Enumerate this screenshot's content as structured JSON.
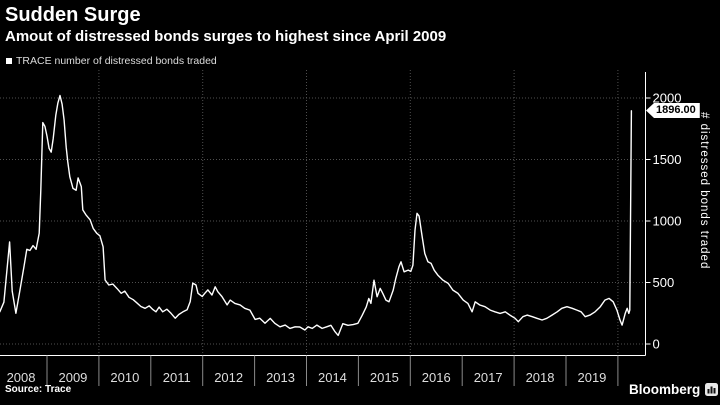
{
  "header": {
    "title": "Sudden Surge",
    "subtitle": "Amout of distressed bonds surges to highest since April 2009"
  },
  "legend": {
    "label": "TRACE number of distressed bonds traded"
  },
  "chart_data": {
    "type": "line",
    "title": "Sudden Surge",
    "subtitle": "Amout of distressed bonds surges to highest since April 2009",
    "xlabel": "",
    "ylabel": "# distressed bonds traded",
    "ylim": [
      0,
      2100
    ],
    "xlim": [
      2008.0,
      2020.5
    ],
    "y_ticks": [
      0,
      500,
      1000,
      1500,
      2000
    ],
    "y_tick_labels": [
      "0",
      "500",
      "1000",
      "1500",
      "2000"
    ],
    "x_tick_labels": [
      "2008",
      "2009",
      "2010",
      "2011",
      "2012",
      "2013",
      "2014",
      "2015",
      "2016",
      "2017",
      "2018",
      "2019"
    ],
    "x_gridline_years": [
      2010,
      2012,
      2014,
      2016,
      2018,
      2020
    ],
    "grid": "dotted",
    "legend_position": "top-left",
    "last_value_label": "1896.00",
    "line_color": "#ffffff",
    "background": "#000000",
    "series": [
      {
        "name": "TRACE number of distressed bonds traded",
        "x": [
          2008.09,
          2008.17,
          2008.25,
          2008.28,
          2008.33,
          2008.4,
          2008.48,
          2008.56,
          2008.61,
          2008.67,
          2008.73,
          2008.79,
          2008.85,
          2008.88,
          2008.92,
          2008.96,
          2009.0,
          2009.04,
          2009.08,
          2009.12,
          2009.17,
          2009.21,
          2009.25,
          2009.29,
          2009.33,
          2009.37,
          2009.4,
          2009.44,
          2009.5,
          2009.56,
          2009.6,
          2009.66,
          2009.69,
          2009.75,
          2009.83,
          2009.89,
          2009.96,
          2010.02,
          2010.08,
          2010.12,
          2010.19,
          2010.27,
          2010.35,
          2010.43,
          2010.5,
          2010.58,
          2010.66,
          2010.73,
          2010.81,
          2010.89,
          2010.97,
          2011.04,
          2011.1,
          2011.16,
          2011.23,
          2011.31,
          2011.39,
          2011.47,
          2011.54,
          2011.62,
          2011.7,
          2011.76,
          2011.81,
          2011.87,
          2011.91,
          2011.99,
          2012.04,
          2012.1,
          2012.18,
          2012.24,
          2012.29,
          2012.37,
          2012.47,
          2012.53,
          2012.62,
          2012.72,
          2012.81,
          2012.91,
          2013.01,
          2013.1,
          2013.2,
          2013.3,
          2013.39,
          2013.49,
          2013.59,
          2013.68,
          2013.78,
          2013.87,
          2013.97,
          2014.03,
          2014.11,
          2014.2,
          2014.3,
          2014.39,
          2014.47,
          2014.55,
          2014.61,
          2014.7,
          2014.8,
          2014.9,
          2014.99,
          2015.07,
          2015.15,
          2015.2,
          2015.24,
          2015.3,
          2015.36,
          2015.42,
          2015.47,
          2015.53,
          2015.59,
          2015.67,
          2015.72,
          2015.78,
          2015.82,
          2015.88,
          2015.96,
          2016.01,
          2016.05,
          2016.09,
          2016.13,
          2016.17,
          2016.23,
          2016.28,
          2016.34,
          2016.4,
          2016.46,
          2016.53,
          2016.63,
          2016.73,
          2016.82,
          2016.92,
          2017.02,
          2017.11,
          2017.19,
          2017.25,
          2017.34,
          2017.44,
          2017.54,
          2017.63,
          2017.73,
          2017.83,
          2017.92,
          2018.02,
          2018.08,
          2018.17,
          2018.25,
          2018.35,
          2018.44,
          2018.54,
          2018.63,
          2018.73,
          2018.83,
          2018.92,
          2019.02,
          2019.12,
          2019.21,
          2019.29,
          2019.37,
          2019.46,
          2019.56,
          2019.66,
          2019.75,
          2019.83,
          2019.91,
          2019.98,
          2020.04,
          2020.08,
          2020.14,
          2020.18,
          2020.21,
          2020.23,
          2020.26
        ],
        "values": [
          262,
          340,
          700,
          830,
          430,
          250,
          440,
          640,
          770,
          760,
          800,
          770,
          900,
          1250,
          1800,
          1770,
          1690,
          1590,
          1560,
          1670,
          1860,
          1960,
          2020,
          1950,
          1820,
          1600,
          1480,
          1360,
          1265,
          1250,
          1350,
          1280,
          1090,
          1050,
          1010,
          940,
          900,
          880,
          790,
          520,
          480,
          487,
          450,
          412,
          430,
          380,
          360,
          335,
          305,
          290,
          310,
          280,
          262,
          300,
          262,
          283,
          250,
          210,
          240,
          262,
          278,
          345,
          495,
          480,
          412,
          386,
          412,
          440,
          398,
          465,
          425,
          386,
          318,
          357,
          330,
          318,
          290,
          276,
          200,
          210,
          168,
          208,
          168,
          140,
          154,
          127,
          140,
          138,
          114,
          140,
          127,
          154,
          127,
          140,
          152,
          100,
          70,
          165,
          152,
          158,
          168,
          230,
          300,
          370,
          330,
          519,
          384,
          452,
          411,
          357,
          343,
          438,
          533,
          627,
          668,
          587,
          601,
          590,
          640,
          925,
          1063,
          1040,
          871,
          736,
          668,
          655,
          600,
          560,
          519,
          493,
          438,
          411,
          357,
          330,
          262,
          343,
          317,
          303,
          276,
          262,
          249,
          262,
          235,
          209,
          181,
          222,
          235,
          222,
          209,
          195,
          209,
          235,
          262,
          290,
          303,
          290,
          276,
          262,
          222,
          235,
          262,
          303,
          357,
          371,
          343,
          276,
          195,
          154,
          249,
          290,
          249,
          276,
          1896
        ]
      }
    ]
  },
  "footer": {
    "source": "Source: Trace",
    "brand": "Bloomberg"
  }
}
